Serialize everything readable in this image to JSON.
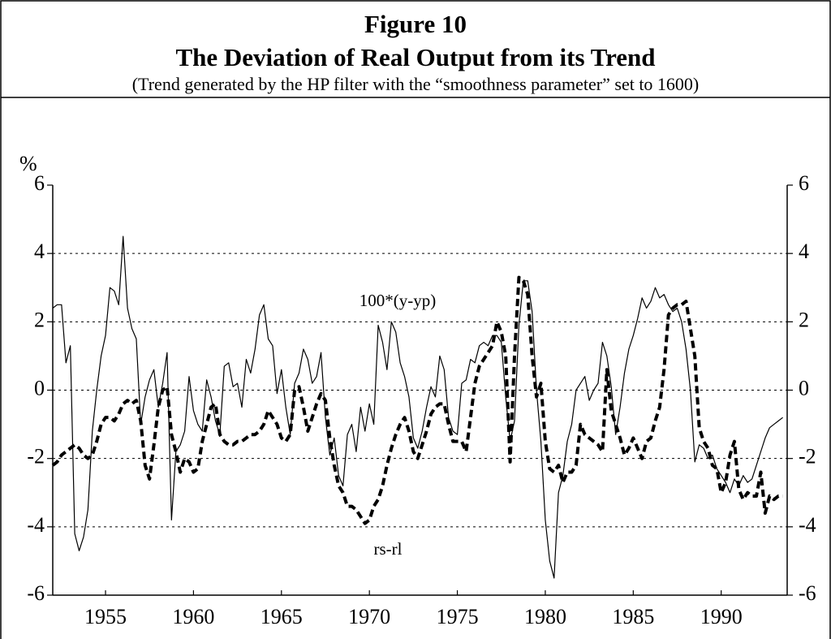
{
  "chart_data": {
    "type": "line",
    "title": "Figure 10",
    "subtitle": "The Deviation of Real Output from its Trend",
    "note": "(Trend generated by the HP filter with the “smoothness parameter” set to 1600)",
    "ylabel": "%",
    "x": [
      1952,
      1952.25,
      1952.5,
      1952.75,
      1953,
      1953.25,
      1953.5,
      1953.75,
      1954,
      1954.25,
      1954.5,
      1954.75,
      1955,
      1955.25,
      1955.5,
      1955.75,
      1956,
      1956.25,
      1956.5,
      1956.75,
      1957,
      1957.25,
      1957.5,
      1957.75,
      1958,
      1958.25,
      1958.5,
      1958.75,
      1959,
      1959.25,
      1959.5,
      1959.75,
      1960,
      1960.25,
      1960.5,
      1960.75,
      1961,
      1961.25,
      1961.5,
      1961.75,
      1962,
      1962.25,
      1962.5,
      1962.75,
      1963,
      1963.25,
      1963.5,
      1963.75,
      1964,
      1964.25,
      1964.5,
      1964.75,
      1965,
      1965.25,
      1965.5,
      1965.75,
      1966,
      1966.25,
      1966.5,
      1966.75,
      1967,
      1967.25,
      1967.5,
      1967.75,
      1968,
      1968.25,
      1968.5,
      1968.75,
      1969,
      1969.25,
      1969.5,
      1969.75,
      1970,
      1970.25,
      1970.5,
      1970.75,
      1971,
      1971.25,
      1971.5,
      1971.75,
      1972,
      1972.25,
      1972.5,
      1972.75,
      1973,
      1973.25,
      1973.5,
      1973.75,
      1974,
      1974.25,
      1974.5,
      1974.75,
      1975,
      1975.25,
      1975.5,
      1975.75,
      1976,
      1976.25,
      1976.5,
      1976.75,
      1977,
      1977.25,
      1977.5,
      1977.75,
      1978,
      1978.25,
      1978.5,
      1978.75,
      1979,
      1979.25,
      1979.5,
      1979.75,
      1980,
      1980.25,
      1980.5,
      1980.75,
      1981,
      1981.25,
      1981.5,
      1981.75,
      1982,
      1982.25,
      1982.5,
      1982.75,
      1983,
      1983.25,
      1983.5,
      1983.75,
      1984,
      1984.25,
      1984.5,
      1984.75,
      1985,
      1985.25,
      1985.5,
      1985.75,
      1986,
      1986.25,
      1986.5,
      1986.75,
      1987,
      1987.25,
      1987.5,
      1987.75,
      1988,
      1988.25,
      1988.5,
      1988.75,
      1989,
      1989.25,
      1989.5,
      1989.75,
      1990,
      1990.25,
      1990.5,
      1990.75,
      1991,
      1991.25,
      1991.5,
      1991.75,
      1992,
      1992.25,
      1992.5,
      1992.75,
      1993,
      1993.25,
      1993.5
    ],
    "xlim": [
      1952,
      1993.75
    ],
    "xticks": [
      1955,
      1960,
      1965,
      1970,
      1975,
      1980,
      1985,
      1990
    ],
    "ylim": [
      -6,
      6
    ],
    "yticks": [
      6,
      4,
      2,
      0,
      -2,
      -4,
      -6
    ],
    "y2lim": [
      -6,
      6
    ],
    "y2ticks": [
      6,
      4,
      2,
      0,
      -2,
      -4,
      -6
    ],
    "grid": true,
    "series": [
      {
        "name": "100*(y-yp)",
        "color": "#000000",
        "style": "solid",
        "width": 1.2,
        "values": [
          2.4,
          2.5,
          2.5,
          0.8,
          1.3,
          -4.2,
          -4.7,
          -4.3,
          -3.5,
          -1.2,
          0.0,
          1.0,
          1.6,
          3.0,
          2.9,
          2.5,
          4.5,
          2.4,
          1.8,
          1.5,
          -1.0,
          -0.2,
          0.3,
          0.6,
          -0.5,
          0.2,
          1.1,
          -3.8,
          -1.8,
          -1.6,
          -1.2,
          0.4,
          -0.6,
          -1.0,
          -1.2,
          0.3,
          -0.2,
          -0.9,
          -1.3,
          0.7,
          0.8,
          0.1,
          0.2,
          -0.5,
          0.9,
          0.5,
          1.2,
          2.2,
          2.5,
          1.5,
          1.3,
          -0.1,
          0.6,
          -0.5,
          -1.3,
          0.2,
          0.5,
          1.2,
          0.9,
          0.2,
          0.4,
          1.1,
          -0.8,
          -1.9,
          -1.4,
          -2.5,
          -2.8,
          -1.3,
          -1.0,
          -1.8,
          -0.5,
          -1.2,
          -0.4,
          -1.0,
          1.9,
          1.4,
          0.6,
          2.0,
          1.7,
          0.8,
          0.4,
          -0.2,
          -1.4,
          -1.7,
          -1.2,
          -0.5,
          0.1,
          -0.2,
          1.0,
          0.6,
          -0.8,
          -1.2,
          -1.3,
          0.2,
          0.3,
          0.9,
          0.8,
          1.3,
          1.4,
          1.3,
          1.6,
          1.6,
          1.4,
          -0.2,
          -1.5,
          -0.9,
          1.9,
          3.2,
          3.2,
          2.3,
          0.0,
          -1.5,
          -3.8,
          -5.0,
          -5.5,
          -3.0,
          -2.5,
          -1.5,
          -1.0,
          0.0,
          0.2,
          0.4,
          -0.3,
          0.0,
          0.2,
          1.4,
          1.0,
          0.1,
          -1.3,
          -0.5,
          0.5,
          1.2,
          1.6,
          2.1,
          2.7,
          2.4,
          2.6,
          3.0,
          2.7,
          2.8,
          2.5,
          2.3,
          2.4,
          2.0,
          1.2,
          0.0,
          -2.1,
          -1.6,
          -1.7,
          -2.0,
          -1.9,
          -2.3,
          -2.5,
          -2.7,
          -3.0,
          -2.6,
          -2.8,
          -2.5,
          -2.7,
          -2.6,
          -2.2,
          -1.8,
          -1.4,
          -1.1,
          -1.0,
          -0.9,
          -0.8
        ]
      },
      {
        "name": "rs-rl",
        "color": "#000000",
        "style": "dashed",
        "width": 4,
        "values": [
          -2.2,
          -2.1,
          -1.9,
          -1.8,
          -1.7,
          -1.6,
          -1.7,
          -1.9,
          -2.0,
          -1.9,
          -1.5,
          -1.0,
          -0.8,
          -0.8,
          -0.9,
          -0.7,
          -0.4,
          -0.3,
          -0.4,
          -0.3,
          -0.9,
          -2.2,
          -2.6,
          -1.6,
          -0.5,
          0.0,
          0.1,
          -1.3,
          -1.8,
          -2.4,
          -2.0,
          -2.1,
          -2.4,
          -2.3,
          -1.5,
          -1.0,
          -0.5,
          -0.4,
          -1.3,
          -1.5,
          -1.6,
          -1.6,
          -1.5,
          -1.5,
          -1.4,
          -1.3,
          -1.3,
          -1.2,
          -1.0,
          -0.6,
          -0.8,
          -1.0,
          -1.4,
          -1.5,
          -1.3,
          0.0,
          0.1,
          -0.5,
          -1.2,
          -0.8,
          -0.4,
          -0.1,
          -0.3,
          -1.4,
          -2.2,
          -2.8,
          -3.0,
          -3.4,
          -3.4,
          -3.5,
          -3.7,
          -3.9,
          -3.8,
          -3.4,
          -3.2,
          -2.8,
          -2.2,
          -1.7,
          -1.3,
          -1.0,
          -0.8,
          -1.2,
          -1.8,
          -2.0,
          -1.6,
          -1.2,
          -0.7,
          -0.5,
          -0.4,
          -0.4,
          -1.0,
          -1.5,
          -1.5,
          -1.5,
          -1.8,
          -0.8,
          0.2,
          0.7,
          0.9,
          1.1,
          1.3,
          2.0,
          1.7,
          1.0,
          -2.1,
          1.0,
          3.3,
          3.2,
          2.8,
          1.0,
          -0.2,
          0.2,
          -1.5,
          -2.3,
          -2.4,
          -2.2,
          -2.7,
          -2.4,
          -2.4,
          -2.2,
          -1.0,
          -1.3,
          -1.4,
          -1.5,
          -1.6,
          -1.8,
          0.6,
          -0.6,
          -1.0,
          -1.4,
          -1.9,
          -1.7,
          -1.4,
          -1.7,
          -2.0,
          -1.5,
          -1.4,
          -0.9,
          -0.5,
          0.6,
          2.2,
          2.4,
          2.5,
          2.5,
          2.6,
          1.8,
          1.0,
          -1.1,
          -1.5,
          -1.7,
          -2.2,
          -2.3,
          -3.0,
          -2.7,
          -1.9,
          -1.5,
          -2.9,
          -3.2,
          -3.0,
          -3.1,
          -3.1,
          -2.4,
          -3.6,
          -3.1,
          -3.2,
          -3.1,
          -3.1
        ]
      }
    ]
  }
}
